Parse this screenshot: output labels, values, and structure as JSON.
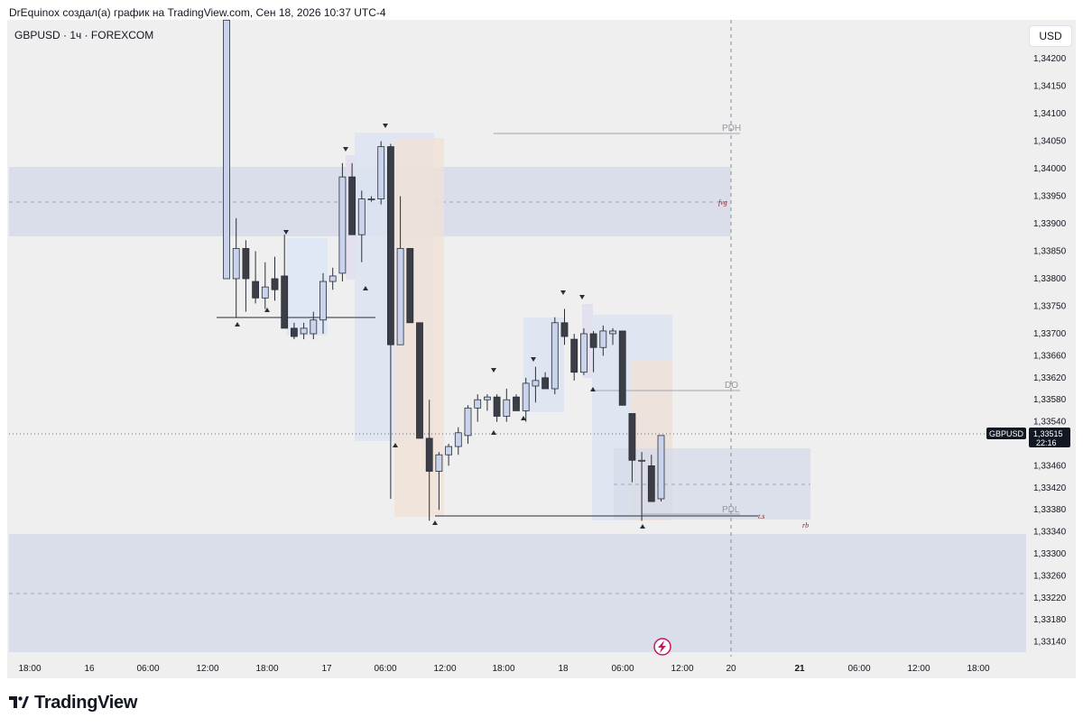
{
  "header": {
    "caption": "DrEquinox создал(а) график на TradingView.com, Сен 18, 2026 10:37 UTC-4"
  },
  "toolbar": {
    "symbol": "GBPUSD · 1ч · FOREXCOM",
    "currency_label": "USD"
  },
  "price_tag": {
    "symbol": "GBPUSD",
    "price": "1,33515",
    "countdown": "22:16"
  },
  "footer": {
    "logo_text": "TradingView"
  },
  "chart_data": {
    "type": "candlestick",
    "title": "GBPUSD · 1ч · FOREXCOM",
    "y_ticks": [
      "1,34200",
      "1,34150",
      "1,34100",
      "1,34050",
      "1,34000",
      "1,33950",
      "1,33900",
      "1,33850",
      "1,33800",
      "1,33750",
      "1,33700",
      "1,33660",
      "1,33620",
      "1,33580",
      "1,33540",
      "1,33460",
      "1,33420",
      "1,33380",
      "1,33340",
      "1,33300",
      "1,33260",
      "1,33220",
      "1,33180",
      "1,33140"
    ],
    "x_ticks": [
      "18:00",
      "16",
      "06:00",
      "12:00",
      "18:00",
      "17",
      "06:00",
      "12:00",
      "18:00",
      "18",
      "06:00",
      "12:00",
      "20",
      "21",
      "06:00",
      "12:00",
      "18:00"
    ],
    "last_price": 1.33515,
    "colors": {
      "up_fill": "#c9d4ec",
      "down_fill": "#3c3e47",
      "outline": "#2a2e39",
      "zone": "#d6dce9"
    },
    "candles": [
      {
        "o": 1.338,
        "h": 1.3427,
        "l": 1.338,
        "c": 1.3427
      },
      {
        "o": 1.338,
        "h": 1.3391,
        "l": 1.3373,
        "c": 1.33855
      },
      {
        "o": 1.33855,
        "h": 1.3387,
        "l": 1.3374,
        "c": 1.338
      },
      {
        "o": 1.33795,
        "h": 1.3385,
        "l": 1.33755,
        "c": 1.33765
      },
      {
        "o": 1.33765,
        "h": 1.3383,
        "l": 1.33745,
        "c": 1.33785
      },
      {
        "o": 1.338,
        "h": 1.3384,
        "l": 1.3376,
        "c": 1.3378
      },
      {
        "o": 1.33805,
        "h": 1.3388,
        "l": 1.3371,
        "c": 1.3371
      },
      {
        "o": 1.3371,
        "h": 1.3372,
        "l": 1.3369,
        "c": 1.33695
      },
      {
        "o": 1.337,
        "h": 1.3372,
        "l": 1.3369,
        "c": 1.3371
      },
      {
        "o": 1.337,
        "h": 1.3374,
        "l": 1.3369,
        "c": 1.33725
      },
      {
        "o": 1.33725,
        "h": 1.3381,
        "l": 1.337,
        "c": 1.33795
      },
      {
        "o": 1.33795,
        "h": 1.3382,
        "l": 1.3378,
        "c": 1.33805
      },
      {
        "o": 1.3381,
        "h": 1.3401,
        "l": 1.33795,
        "c": 1.33985
      },
      {
        "o": 1.33985,
        "h": 1.3401,
        "l": 1.3388,
        "c": 1.3388
      },
      {
        "o": 1.3388,
        "h": 1.3396,
        "l": 1.3383,
        "c": 1.33945
      },
      {
        "o": 1.33945,
        "h": 1.3395,
        "l": 1.3394,
        "c": 1.33945
      },
      {
        "o": 1.33945,
        "h": 1.3405,
        "l": 1.33935,
        "c": 1.3404
      },
      {
        "o": 1.3404,
        "h": 1.34045,
        "l": 1.334,
        "c": 1.3368
      },
      {
        "o": 1.3368,
        "h": 1.3395,
        "l": 1.3368,
        "c": 1.33855
      },
      {
        "o": 1.33855,
        "h": 1.33855,
        "l": 1.3372,
        "c": 1.3372
      },
      {
        "o": 1.3372,
        "h": 1.3372,
        "l": 1.3351,
        "c": 1.3351
      },
      {
        "o": 1.3351,
        "h": 1.3358,
        "l": 1.3336,
        "c": 1.3345
      },
      {
        "o": 1.3345,
        "h": 1.33485,
        "l": 1.3338,
        "c": 1.3348
      },
      {
        "o": 1.3348,
        "h": 1.335,
        "l": 1.3346,
        "c": 1.33495
      },
      {
        "o": 1.33495,
        "h": 1.3353,
        "l": 1.3348,
        "c": 1.3352
      },
      {
        "o": 1.33515,
        "h": 1.3357,
        "l": 1.335,
        "c": 1.33565
      },
      {
        "o": 1.33565,
        "h": 1.3359,
        "l": 1.3354,
        "c": 1.3358
      },
      {
        "o": 1.3358,
        "h": 1.3359,
        "l": 1.3356,
        "c": 1.33585
      },
      {
        "o": 1.33585,
        "h": 1.3359,
        "l": 1.3354,
        "c": 1.3355
      },
      {
        "o": 1.3355,
        "h": 1.336,
        "l": 1.3354,
        "c": 1.3358
      },
      {
        "o": 1.33585,
        "h": 1.3359,
        "l": 1.3356,
        "c": 1.3356
      },
      {
        "o": 1.3356,
        "h": 1.3362,
        "l": 1.3354,
        "c": 1.3361
      },
      {
        "o": 1.33605,
        "h": 1.3364,
        "l": 1.33575,
        "c": 1.33615
      },
      {
        "o": 1.3362,
        "h": 1.3363,
        "l": 1.336,
        "c": 1.336
      },
      {
        "o": 1.336,
        "h": 1.3373,
        "l": 1.3359,
        "c": 1.3372
      },
      {
        "o": 1.3372,
        "h": 1.33745,
        "l": 1.3368,
        "c": 1.33695
      },
      {
        "o": 1.3369,
        "h": 1.337,
        "l": 1.33615,
        "c": 1.3363
      },
      {
        "o": 1.3363,
        "h": 1.3371,
        "l": 1.33625,
        "c": 1.337
      },
      {
        "o": 1.337,
        "h": 1.33705,
        "l": 1.3363,
        "c": 1.33675
      },
      {
        "o": 1.33675,
        "h": 1.33715,
        "l": 1.3366,
        "c": 1.33705
      },
      {
        "o": 1.337,
        "h": 1.3371,
        "l": 1.3368,
        "c": 1.33705
      },
      {
        "o": 1.33705,
        "h": 1.33705,
        "l": 1.3357,
        "c": 1.3357
      },
      {
        "o": 1.33555,
        "h": 1.33555,
        "l": 1.3343,
        "c": 1.3347
      },
      {
        "o": 1.3347,
        "h": 1.33485,
        "l": 1.3336,
        "c": 1.3347
      },
      {
        "o": 1.3346,
        "h": 1.3348,
        "l": 1.33395,
        "c": 1.33395
      },
      {
        "o": 1.334,
        "h": 1.33515,
        "l": 1.33395,
        "c": 1.33515
      }
    ],
    "annotations": [
      "PDH",
      "fvg",
      "DO",
      "PDL",
      "t.s",
      "rb"
    ]
  }
}
